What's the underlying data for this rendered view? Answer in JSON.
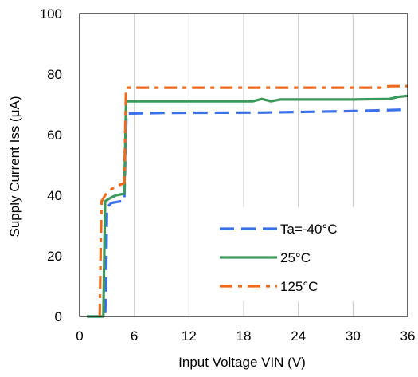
{
  "chart_data": {
    "type": "line",
    "xlabel": "Input Voltage VIN (V)",
    "ylabel": "Supply Current Iss (μA)",
    "xlim": [
      0,
      36
    ],
    "ylim": [
      0,
      100
    ],
    "xticks": [
      0,
      6,
      12,
      18,
      24,
      30,
      36
    ],
    "yticks": [
      0,
      20,
      40,
      60,
      80,
      100
    ],
    "grid": "vertical",
    "legend_position": "bottom-right",
    "series": [
      {
        "name": "Ta=-40°C",
        "color": "#3a70e8",
        "dash": "long-dash",
        "points": [
          [
            0.8,
            0
          ],
          [
            2.8,
            0
          ],
          [
            2.9,
            10
          ],
          [
            3.0,
            36
          ],
          [
            3.5,
            37.5
          ],
          [
            4.5,
            38
          ],
          [
            4.9,
            38
          ],
          [
            5.0,
            50
          ],
          [
            5.15,
            67
          ],
          [
            10,
            67.2
          ],
          [
            20,
            67.3
          ],
          [
            30,
            67.8
          ],
          [
            36,
            68.3
          ]
        ]
      },
      {
        "name": "25°C",
        "color": "#3b9a5b",
        "dash": "solid",
        "points": [
          [
            0.8,
            0
          ],
          [
            2.6,
            0
          ],
          [
            2.7,
            20
          ],
          [
            2.8,
            38
          ],
          [
            3.3,
            39
          ],
          [
            4.0,
            40
          ],
          [
            4.9,
            40.5
          ],
          [
            5.0,
            55
          ],
          [
            5.1,
            71
          ],
          [
            10,
            71
          ],
          [
            19,
            71
          ],
          [
            20,
            71.8
          ],
          [
            21,
            71
          ],
          [
            22,
            71.6
          ],
          [
            30,
            71.6
          ],
          [
            34,
            71.8
          ],
          [
            35,
            72.5
          ],
          [
            36,
            72.8
          ]
        ]
      },
      {
        "name": "125°C",
        "color": "#ef6a1c",
        "dash": "dash-dot",
        "points": [
          [
            2.2,
            0
          ],
          [
            2.3,
            20
          ],
          [
            2.4,
            38
          ],
          [
            3.0,
            41
          ],
          [
            4.0,
            43
          ],
          [
            4.9,
            44
          ],
          [
            5.0,
            60
          ],
          [
            5.1,
            75.5
          ],
          [
            10,
            75.5
          ],
          [
            20,
            75.5
          ],
          [
            30,
            75.5
          ],
          [
            33,
            75.5
          ],
          [
            34,
            76
          ],
          [
            36,
            76
          ]
        ]
      }
    ]
  }
}
